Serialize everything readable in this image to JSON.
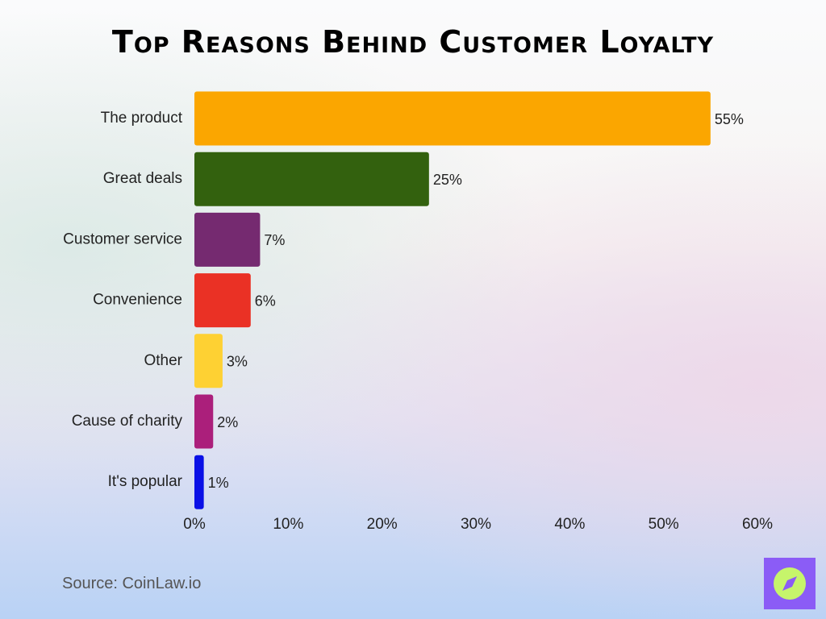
{
  "chart_data": {
    "type": "bar",
    "orientation": "horizontal",
    "title": "Top Reasons Behind Customer Loyalty",
    "categories": [
      "The product",
      "Great deals",
      "Customer service",
      "Convenience",
      "Other",
      "Cause of charity",
      "It's popular"
    ],
    "values": [
      55,
      25,
      7,
      6,
      3,
      2,
      1
    ],
    "value_labels": [
      "55%",
      "25%",
      "7%",
      "6%",
      "3%",
      "2%",
      "1%"
    ],
    "colors": [
      "#fba600",
      "#33610e",
      "#752a70",
      "#ea3125",
      "#fed133",
      "#ab1f7b",
      "#0a10e6"
    ],
    "xlim": [
      0,
      60
    ],
    "xticks": [
      0,
      10,
      20,
      30,
      40,
      50,
      60
    ],
    "xtick_labels": [
      "0%",
      "10%",
      "20%",
      "30%",
      "40%",
      "50%",
      "60%"
    ],
    "grid": false,
    "legend": "none"
  },
  "footer": {
    "source": "Source: CoinLaw.io"
  },
  "badge": {
    "icon": "compass-icon",
    "background": "#8b5cf6",
    "accent": "#c6f56b"
  }
}
